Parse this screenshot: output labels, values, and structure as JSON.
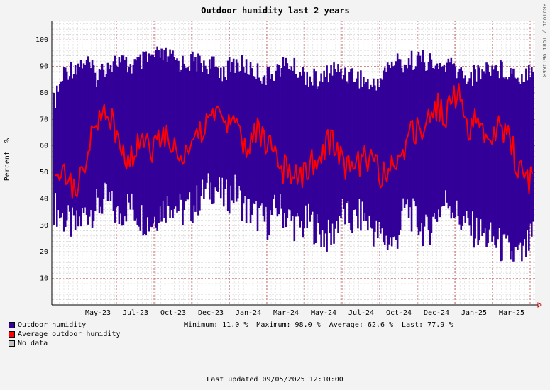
{
  "chart_data": {
    "type": "area",
    "title": "Outdoor humidity last 2 years",
    "ylabel": "Percent  %",
    "ylim": [
      0,
      107
    ],
    "y_ticks": [
      10,
      20,
      30,
      40,
      50,
      60,
      70,
      80,
      90,
      100
    ],
    "x_ticks": [
      "May-23",
      "Jul-23",
      "Oct-23",
      "Dec-23",
      "Jan-24",
      "Mar-24",
      "May-24",
      "Jul-24",
      "Oct-24",
      "Dec-24",
      "Jan-25",
      "Mar-25"
    ],
    "grid": true,
    "series": [
      {
        "name": "Outdoor humidity",
        "color": "#330099",
        "min": [
          30,
          25,
          22,
          28,
          30,
          33,
          26,
          31,
          27,
          24,
          29,
          32,
          28,
          30,
          35,
          38,
          33,
          36,
          29,
          27,
          24,
          30,
          26,
          22,
          25,
          20,
          18,
          28,
          24,
          27,
          21,
          18,
          16,
          30,
          25,
          20,
          28,
          33,
          26,
          22,
          20,
          18,
          15,
          12,
          11,
          19
        ],
        "max": [
          80,
          92,
          94,
          96,
          90,
          95,
          96,
          94,
          95,
          97,
          98,
          97,
          95,
          96,
          95,
          94,
          92,
          95,
          94,
          92,
          90,
          93,
          95,
          92,
          90,
          88,
          93,
          92,
          91,
          89,
          86,
          92,
          96,
          95,
          97,
          96,
          93,
          95,
          92,
          90,
          92,
          94,
          93,
          92,
          90,
          95
        ]
      },
      {
        "name": "Average outdoor humidity",
        "color": "#ff0000",
        "values": [
          55,
          48,
          40,
          58,
          66,
          75,
          60,
          55,
          62,
          58,
          64,
          60,
          56,
          62,
          68,
          74,
          70,
          68,
          60,
          65,
          62,
          54,
          50,
          46,
          52,
          58,
          62,
          55,
          50,
          56,
          54,
          48,
          52,
          60,
          66,
          70,
          75,
          72,
          80,
          66,
          70,
          62,
          68,
          60,
          50,
          46
        ]
      }
    ],
    "legend": [
      "Outdoor humidity",
      "Average outdoor humidity",
      "No data"
    ],
    "legend_colors": [
      "#330099",
      "#ff0000",
      "#c0c0c0"
    ],
    "legend_position": "bottom-left"
  },
  "stats": {
    "text": "Minimum: 11.0 %  Maximum: 98.0 %  Average: 62.6 %  Last: 77.9 %"
  },
  "footer": "Last updated 09/05/2025 12:10:00",
  "credit": "RRDTOOL / TOBI OETIKER"
}
